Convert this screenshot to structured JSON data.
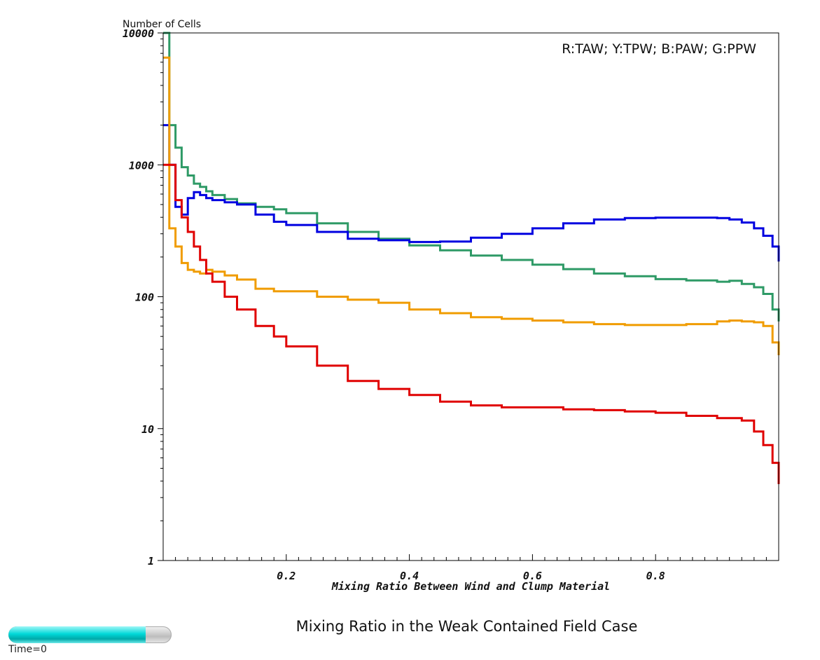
{
  "title": "Mixing Ratio in the Weak Contained Field Case",
  "time_label": "Time=0",
  "time_progress": 0.84,
  "chart_data": {
    "type": "line",
    "ylabel": "Number of Cells",
    "xlabel": "Mixing Ratio Between Wind and Clump Material",
    "legend_text": "R:TAW; Y:TPW; B:PAW; G:PPW",
    "legend_position": "top-right",
    "y_scale": "log",
    "xlim": [
      0.0,
      1.0
    ],
    "ylim": [
      1,
      10000
    ],
    "x_ticks": [
      0.2,
      0.4,
      0.6,
      0.8
    ],
    "x_tick_labels": [
      "0.2",
      "0.4",
      "0.6",
      "0.8"
    ],
    "y_ticks": [
      1,
      10,
      100,
      1000,
      10000
    ],
    "y_tick_labels": [
      "1",
      "10",
      "100",
      "1000",
      "10000"
    ],
    "grid": false,
    "series": [
      {
        "color": "#2e9a66",
        "x": [
          0.0,
          0.005,
          0.01,
          0.02,
          0.03,
          0.04,
          0.05,
          0.06,
          0.07,
          0.08,
          0.1,
          0.12,
          0.15,
          0.18,
          0.2,
          0.25,
          0.3,
          0.35,
          0.4,
          0.45,
          0.5,
          0.55,
          0.6,
          0.65,
          0.7,
          0.75,
          0.8,
          0.85,
          0.9,
          0.92,
          0.94,
          0.96,
          0.975,
          0.99,
          1.0
        ],
        "y": [
          10000,
          10000,
          2000,
          1350,
          960,
          830,
          720,
          680,
          630,
          590,
          550,
          510,
          480,
          460,
          430,
          360,
          310,
          275,
          245,
          225,
          205,
          190,
          175,
          162,
          150,
          143,
          136,
          133,
          130,
          132,
          125,
          118,
          105,
          80,
          65
        ]
      },
      {
        "color": "#0000e0",
        "x": [
          0.0,
          0.005,
          0.01,
          0.02,
          0.03,
          0.04,
          0.05,
          0.06,
          0.07,
          0.08,
          0.1,
          0.12,
          0.15,
          0.18,
          0.2,
          0.25,
          0.3,
          0.35,
          0.4,
          0.45,
          0.5,
          0.55,
          0.6,
          0.65,
          0.7,
          0.75,
          0.8,
          0.85,
          0.9,
          0.92,
          0.94,
          0.96,
          0.975,
          0.99,
          1.0
        ],
        "y": [
          2000,
          2000,
          1000,
          480,
          420,
          560,
          620,
          590,
          560,
          540,
          520,
          500,
          420,
          370,
          350,
          310,
          275,
          268,
          260,
          262,
          280,
          300,
          330,
          360,
          385,
          395,
          398,
          398,
          395,
          385,
          365,
          330,
          290,
          240,
          185
        ]
      },
      {
        "color": "#f09c00",
        "x": [
          0.0,
          0.005,
          0.01,
          0.02,
          0.03,
          0.04,
          0.05,
          0.06,
          0.07,
          0.08,
          0.1,
          0.12,
          0.15,
          0.18,
          0.2,
          0.25,
          0.3,
          0.35,
          0.4,
          0.45,
          0.5,
          0.55,
          0.6,
          0.65,
          0.7,
          0.75,
          0.8,
          0.85,
          0.9,
          0.92,
          0.94,
          0.96,
          0.975,
          0.99,
          1.0
        ],
        "y": [
          6500,
          6500,
          330,
          240,
          180,
          160,
          155,
          150,
          160,
          155,
          145,
          135,
          115,
          110,
          110,
          100,
          95,
          90,
          80,
          75,
          70,
          68,
          66,
          64,
          62,
          61,
          61,
          62,
          65,
          66,
          65,
          64,
          60,
          45,
          36
        ]
      },
      {
        "color": "#e00000",
        "x": [
          0.0,
          0.005,
          0.01,
          0.02,
          0.03,
          0.04,
          0.05,
          0.06,
          0.07,
          0.08,
          0.1,
          0.12,
          0.15,
          0.18,
          0.2,
          0.25,
          0.3,
          0.35,
          0.4,
          0.45,
          0.5,
          0.55,
          0.6,
          0.65,
          0.7,
          0.75,
          0.8,
          0.85,
          0.9,
          0.92,
          0.94,
          0.96,
          0.975,
          0.99,
          1.0
        ],
        "y": [
          1000,
          1000,
          1000,
          540,
          400,
          310,
          240,
          190,
          150,
          130,
          100,
          80,
          60,
          50,
          42,
          30,
          23,
          20,
          18,
          16,
          15,
          14.5,
          14.5,
          14,
          13.8,
          13.5,
          13.2,
          12.5,
          12,
          12,
          11.5,
          9.5,
          7.5,
          5.5,
          3.8
        ]
      }
    ]
  }
}
